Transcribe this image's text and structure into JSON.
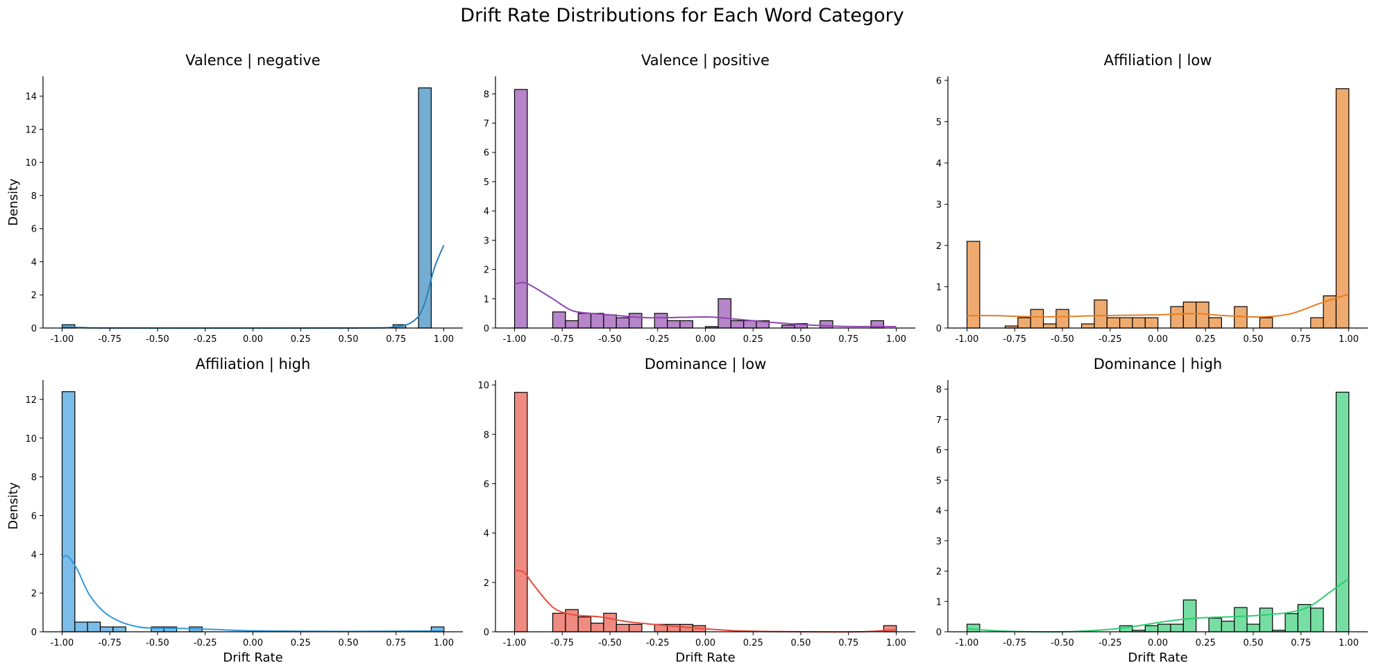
{
  "figure": {
    "title": "Drift Rate Distributions for Each Word Category"
  },
  "chart_data": [
    {
      "type": "histogram",
      "title": "Valence | negative",
      "xlabel": "",
      "ylabel": "Density",
      "xlim": [
        -1.1,
        1.1
      ],
      "ylim": [
        0,
        15.2
      ],
      "xticks": [
        "-1.00",
        "-0.75",
        "-0.50",
        "-0.25",
        "0.00",
        "0.25",
        "0.50",
        "0.75",
        "1.00"
      ],
      "yticks": [
        0,
        2,
        4,
        6,
        8,
        10,
        12,
        14
      ],
      "bin_start": -1.0,
      "bin_width": 0.0667,
      "values": [
        0.2,
        0,
        0,
        0,
        0,
        0,
        0,
        0,
        0,
        0,
        0,
        0,
        0,
        0,
        0,
        0,
        0,
        0,
        0,
        0,
        0,
        0,
        0,
        0,
        0,
        0,
        0.2,
        0,
        14.5
      ],
      "color": "#2980b9",
      "kde": [
        [
          -1.0,
          0.06
        ],
        [
          -0.9,
          0.03
        ],
        [
          -0.7,
          0.0
        ],
        [
          0.5,
          0.0
        ],
        [
          0.75,
          0.08
        ],
        [
          0.85,
          0.5
        ],
        [
          0.9,
          1.5
        ],
        [
          0.95,
          3.6
        ],
        [
          1.0,
          5.0
        ]
      ]
    },
    {
      "type": "histogram",
      "title": "Valence | positive",
      "xlabel": "",
      "ylabel": "",
      "xlim": [
        -1.1,
        1.1
      ],
      "ylim": [
        0,
        8.6
      ],
      "xticks": [
        "-1.00",
        "-0.75",
        "-0.50",
        "-0.25",
        "0.00",
        "0.25",
        "0.50",
        "0.75",
        "1.00"
      ],
      "yticks": [
        0,
        1,
        2,
        3,
        4,
        5,
        6,
        7,
        8
      ],
      "bin_start": -1.0,
      "bin_width": 0.0667,
      "values": [
        8.15,
        0,
        0,
        0.55,
        0.25,
        0.5,
        0.5,
        0.45,
        0.35,
        0.5,
        0,
        0.5,
        0.25,
        0.25,
        0,
        0.05,
        1.0,
        0.25,
        0.25,
        0.25,
        0,
        0.1,
        0.15,
        0,
        0.25,
        0,
        0,
        0,
        0.25
      ],
      "color": "#8e44ad",
      "kde": [
        [
          -1.0,
          1.5
        ],
        [
          -0.95,
          1.55
        ],
        [
          -0.9,
          1.4
        ],
        [
          -0.8,
          1.0
        ],
        [
          -0.7,
          0.6
        ],
        [
          -0.6,
          0.5
        ],
        [
          -0.5,
          0.45
        ],
        [
          -0.3,
          0.35
        ],
        [
          0.0,
          0.38
        ],
        [
          0.1,
          0.34
        ],
        [
          0.3,
          0.22
        ],
        [
          0.5,
          0.12
        ],
        [
          0.7,
          0.06
        ],
        [
          0.9,
          0.05
        ],
        [
          1.0,
          0.05
        ]
      ]
    },
    {
      "type": "histogram",
      "title": "Affiliation | low",
      "xlabel": "",
      "ylabel": "",
      "xlim": [
        -1.1,
        1.1
      ],
      "ylim": [
        0,
        6.1
      ],
      "xticks": [
        "-1.00",
        "-0.75",
        "-0.50",
        "-0.25",
        "0.00",
        "0.25",
        "0.50",
        "0.75",
        "1.00"
      ],
      "yticks": [
        0,
        1,
        2,
        3,
        4,
        5,
        6
      ],
      "bin_start": -1.0,
      "bin_width": 0.0667,
      "values": [
        2.1,
        0,
        0,
        0.05,
        0.25,
        0.45,
        0.1,
        0.45,
        0,
        0.1,
        0.68,
        0.25,
        0.25,
        0.25,
        0.25,
        0,
        0.52,
        0.63,
        0.63,
        0.25,
        0,
        0.52,
        0,
        0.25,
        0,
        0,
        0,
        0.25,
        0.78,
        5.8
      ],
      "color": "#e67e22",
      "kde": [
        [
          -1.0,
          0.3
        ],
        [
          -0.85,
          0.3
        ],
        [
          -0.6,
          0.27
        ],
        [
          -0.3,
          0.3
        ],
        [
          0.0,
          0.32
        ],
        [
          0.2,
          0.35
        ],
        [
          0.35,
          0.3
        ],
        [
          0.55,
          0.27
        ],
        [
          0.7,
          0.35
        ],
        [
          0.85,
          0.6
        ],
        [
          1.0,
          0.82
        ]
      ]
    },
    {
      "type": "histogram",
      "title": "Affiliation | high",
      "xlabel": "Drift Rate",
      "ylabel": "Density",
      "xlim": [
        -1.1,
        1.1
      ],
      "ylim": [
        0,
        13.0
      ],
      "xticks": [
        "-1.00",
        "-0.75",
        "-0.50",
        "-0.25",
        "0.00",
        "0.25",
        "0.50",
        "0.75",
        "1.00"
      ],
      "yticks": [
        0,
        2,
        4,
        6,
        8,
        10,
        12
      ],
      "bin_start": -1.0,
      "bin_width": 0.0667,
      "values": [
        12.4,
        0.5,
        0.5,
        0.25,
        0.25,
        0,
        0,
        0.25,
        0.25,
        0,
        0.25,
        0,
        0,
        0,
        0,
        0,
        0,
        0,
        0,
        0,
        0,
        0,
        0,
        0,
        0,
        0,
        0,
        0,
        0,
        0.25
      ],
      "color": "#3498db",
      "kde": [
        [
          -1.0,
          3.8
        ],
        [
          -0.97,
          3.9
        ],
        [
          -0.92,
          3.2
        ],
        [
          -0.85,
          1.8
        ],
        [
          -0.75,
          0.8
        ],
        [
          -0.6,
          0.25
        ],
        [
          -0.4,
          0.18
        ],
        [
          -0.2,
          0.12
        ],
        [
          0.0,
          0.05
        ],
        [
          0.5,
          0.02
        ],
        [
          0.9,
          0.04
        ],
        [
          1.0,
          0.05
        ]
      ]
    },
    {
      "type": "histogram",
      "title": "Dominance | low",
      "xlabel": "Drift Rate",
      "ylabel": "",
      "xlim": [
        -1.1,
        1.1
      ],
      "ylim": [
        0,
        10.2
      ],
      "xticks": [
        "-1.00",
        "-0.75",
        "-0.50",
        "-0.25",
        "0.00",
        "0.25",
        "0.50",
        "0.75",
        "1.00"
      ],
      "yticks": [
        0,
        2,
        4,
        6,
        8,
        10
      ],
      "bin_start": -1.0,
      "bin_width": 0.0667,
      "values": [
        9.7,
        0,
        0,
        0.75,
        0.9,
        0.6,
        0.35,
        0.75,
        0.3,
        0.3,
        0,
        0.3,
        0.3,
        0.3,
        0.25,
        0,
        0,
        0,
        0,
        0,
        0,
        0,
        0,
        0,
        0,
        0,
        0,
        0,
        0,
        0.25
      ],
      "color": "#e74c3c",
      "kde": [
        [
          -1.0,
          2.5
        ],
        [
          -0.95,
          2.4
        ],
        [
          -0.9,
          1.9
        ],
        [
          -0.8,
          1.0
        ],
        [
          -0.7,
          0.7
        ],
        [
          -0.55,
          0.6
        ],
        [
          -0.4,
          0.4
        ],
        [
          -0.2,
          0.25
        ],
        [
          0.0,
          0.12
        ],
        [
          0.2,
          0.03
        ],
        [
          0.5,
          0.0
        ],
        [
          0.8,
          0.0
        ],
        [
          1.0,
          0.08
        ]
      ]
    },
    {
      "type": "histogram",
      "title": "Dominance | high",
      "xlabel": "Drift Rate",
      "ylabel": "",
      "xlim": [
        -1.1,
        1.1
      ],
      "ylim": [
        0,
        8.3
      ],
      "xticks": [
        "-1.00",
        "-0.75",
        "-0.50",
        "-0.25",
        "0.00",
        "0.25",
        "0.50",
        "0.75",
        "1.00"
      ],
      "yticks": [
        0,
        1,
        2,
        3,
        4,
        5,
        6,
        7,
        8
      ],
      "bin_start": -1.0,
      "bin_width": 0.0667,
      "values": [
        0.25,
        0,
        0,
        0,
        0,
        0,
        0,
        0,
        0,
        0,
        0,
        0,
        0.2,
        0.05,
        0.2,
        0.25,
        0.25,
        1.05,
        0,
        0.45,
        0.35,
        0.8,
        0.25,
        0.78,
        0.05,
        0.6,
        0.9,
        0.78,
        0,
        7.9
      ],
      "color": "#2ecc71",
      "kde": [
        [
          -1.0,
          0.1
        ],
        [
          -0.8,
          0.02
        ],
        [
          -0.5,
          0.0
        ],
        [
          -0.25,
          0.08
        ],
        [
          -0.1,
          0.2
        ],
        [
          0.05,
          0.35
        ],
        [
          0.2,
          0.45
        ],
        [
          0.4,
          0.5
        ],
        [
          0.55,
          0.55
        ],
        [
          0.7,
          0.65
        ],
        [
          0.8,
          0.85
        ],
        [
          0.9,
          1.3
        ],
        [
          1.0,
          1.75
        ]
      ]
    }
  ]
}
